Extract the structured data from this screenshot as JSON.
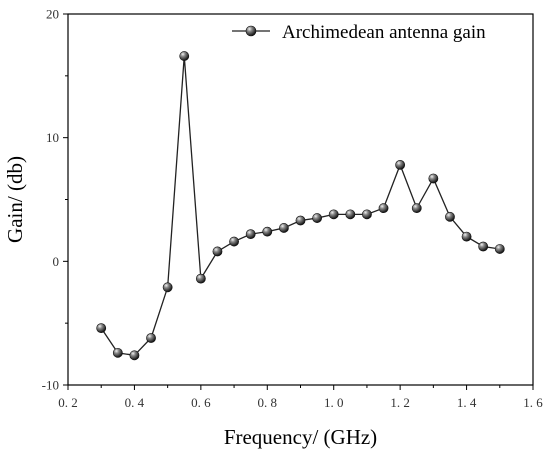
{
  "chart_data": {
    "type": "line",
    "xlabel": "Frequency/ (GHz)",
    "ylabel": "Gain/ (db)",
    "xlim": [
      0.2,
      1.6
    ],
    "ylim": [
      -10,
      20
    ],
    "x_ticks": [
      0.2,
      0.4,
      0.6,
      0.8,
      1.0,
      1.2,
      1.4,
      1.6
    ],
    "x_tick_labels": [
      "0. 2",
      "0. 4",
      "0. 6",
      "0. 8",
      "1. 0",
      "1. 2",
      "1. 4",
      "1. 6"
    ],
    "y_ticks": [
      -10,
      0,
      10,
      20
    ],
    "y_tick_labels": [
      "-10",
      "0",
      "10",
      "20"
    ],
    "grid": false,
    "legend_position": "top-right",
    "series": [
      {
        "name": "Archimedean antenna gain",
        "color": "#222222",
        "marker": "sphere",
        "x": [
          0.3,
          0.35,
          0.4,
          0.45,
          0.5,
          0.55,
          0.6,
          0.65,
          0.7,
          0.75,
          0.8,
          0.85,
          0.9,
          0.95,
          1.0,
          1.05,
          1.1,
          1.15,
          1.2,
          1.25,
          1.3,
          1.35,
          1.4,
          1.45,
          1.5
        ],
        "values": [
          -5.4,
          -7.4,
          -7.6,
          -6.2,
          -2.1,
          16.6,
          -1.4,
          0.8,
          1.6,
          2.2,
          2.4,
          2.7,
          3.3,
          3.5,
          3.8,
          3.8,
          3.8,
          4.3,
          7.8,
          4.3,
          6.7,
          3.6,
          2.0,
          1.2,
          1.0
        ]
      }
    ]
  }
}
